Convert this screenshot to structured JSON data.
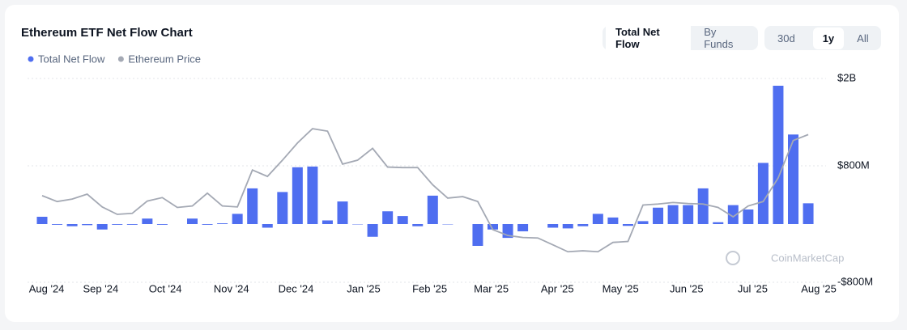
{
  "chart_data": {
    "type": "bar",
    "title": "Ethereum ETF Net Flow Chart",
    "categories": [
      null,
      null,
      null,
      null,
      null,
      null,
      null,
      null,
      null,
      null,
      null,
      null,
      null,
      null,
      null,
      null,
      null,
      null,
      null,
      null,
      null,
      null,
      null,
      null,
      null,
      null,
      null,
      null,
      null,
      null,
      null,
      null,
      null,
      null,
      null,
      null,
      null,
      null,
      null,
      null,
      null,
      null,
      null,
      null,
      null,
      null,
      null,
      null,
      null,
      null,
      null,
      null
    ],
    "xticks": [
      {
        "value": 0.3,
        "label": "Aug '24"
      },
      {
        "value": 3.9,
        "label": "Sep '24"
      },
      {
        "value": 8.2,
        "label": "Oct '24"
      },
      {
        "value": 12.6,
        "label": "Nov '24"
      },
      {
        "value": 16.9,
        "label": "Dec '24"
      },
      {
        "value": 21.4,
        "label": "Jan '25"
      },
      {
        "value": 25.8,
        "label": "Feb '25"
      },
      {
        "value": 29.9,
        "label": "Mar '25"
      },
      {
        "value": 34.3,
        "label": "Apr '25"
      },
      {
        "value": 38.5,
        "label": "May '25"
      },
      {
        "value": 42.9,
        "label": "Jun '25"
      },
      {
        "value": 47.3,
        "label": "Jul '25"
      },
      {
        "value": 51.7,
        "label": "Aug '25"
      }
    ],
    "ylim": [
      -800000000,
      2000000000
    ],
    "yticks": [
      {
        "value": 2000000000,
        "label": "$2B"
      },
      {
        "value": 800000000,
        "label": "$800M"
      },
      {
        "value": -800000000,
        "label": "-$800M"
      }
    ],
    "y2lim": [
      880,
      5020
    ],
    "grid": true,
    "series": [
      {
        "name": "Total Net Flow",
        "color": "#4f6ef0",
        "values": [
          100000000,
          -10000000,
          -30000000,
          -15000000,
          -75000000,
          -10000000,
          -10000000,
          75000000,
          -10000000,
          0,
          75000000,
          -10000000,
          10000000,
          140000000,
          490000000,
          -50000000,
          440000000,
          780000000,
          790000000,
          50000000,
          310000000,
          -5000000,
          -175000000,
          175000000,
          110000000,
          -30000000,
          390000000,
          -5000000,
          0,
          -300000000,
          -75000000,
          -190000000,
          -100000000,
          0,
          -50000000,
          -60000000,
          -30000000,
          140000000,
          90000000,
          -25000000,
          40000000,
          225000000,
          260000000,
          260000000,
          490000000,
          25000000,
          260000000,
          200000000,
          840000000,
          1900000000,
          1230000000,
          285000000
        ]
      },
      {
        "name": "Ethereum Price",
        "color": "#a4a9b4",
        "type": "line",
        "axis": "y2",
        "values": [
          2640,
          2520,
          2570,
          2670,
          2410,
          2260,
          2280,
          2530,
          2600,
          2400,
          2430,
          2690,
          2430,
          2410,
          3160,
          3030,
          3360,
          3710,
          4000,
          3950,
          3280,
          3360,
          3600,
          3220,
          3210,
          3210,
          2860,
          2590,
          2620,
          2520,
          1950,
          1830,
          1790,
          1780,
          1640,
          1500,
          1520,
          1500,
          1690,
          1710,
          2450,
          2470,
          2500,
          2480,
          2470,
          2400,
          2210,
          2430,
          2520,
          3000,
          3760,
          3880
        ]
      }
    ]
  },
  "controls": {
    "view": [
      "Total Net Flow",
      "By Funds"
    ],
    "range": [
      "30d",
      "1y",
      "All"
    ]
  },
  "watermark": "CoinMarketCap"
}
